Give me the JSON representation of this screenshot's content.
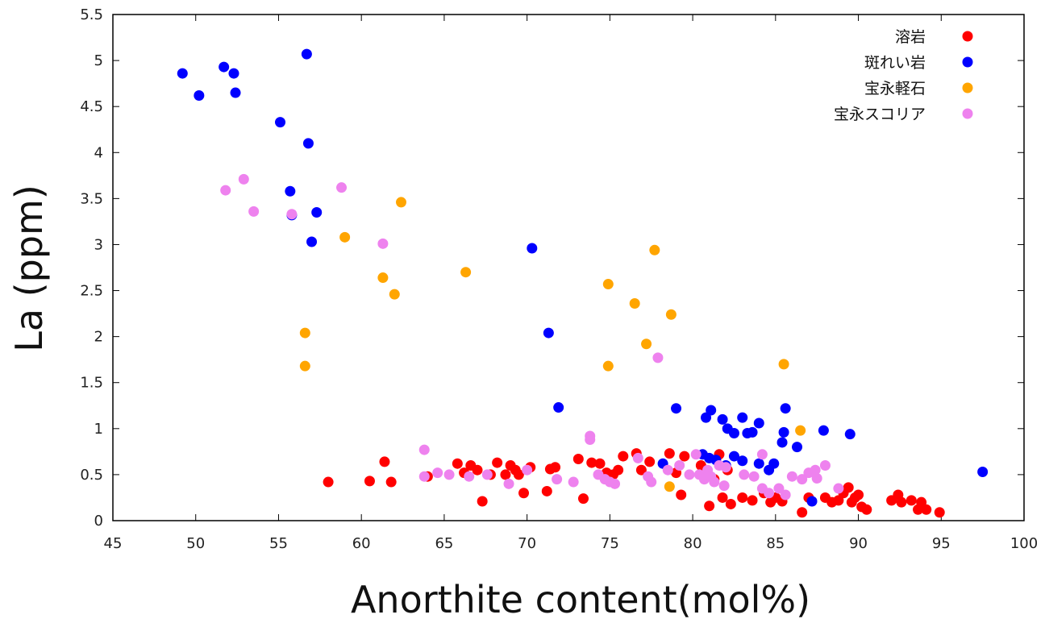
{
  "chart_data": {
    "type": "scatter",
    "title": "",
    "xlabel": "Anorthite content(mol%)",
    "ylabel": "La (ppm)",
    "xlim": [
      45,
      100
    ],
    "ylim": [
      0,
      5.5
    ],
    "xticks": [
      "45",
      "50",
      "55",
      "60",
      "65",
      "70",
      "75",
      "80",
      "85",
      "90",
      "95",
      "100"
    ],
    "yticks": [
      "0",
      "0.5",
      "1",
      "1.5",
      "2",
      "2.5",
      "3",
      "3.5",
      "4",
      "4.5",
      "5",
      "5.5"
    ],
    "grid": false,
    "legend_position": "top-right",
    "series": [
      {
        "name": "溶岩",
        "color": "#ff0000",
        "points": [
          [
            58,
            0.42
          ],
          [
            60.5,
            0.43
          ],
          [
            61.4,
            0.64
          ],
          [
            61.8,
            0.42
          ],
          [
            64,
            0.48
          ],
          [
            65.8,
            0.62
          ],
          [
            66.2,
            0.52
          ],
          [
            66.6,
            0.6
          ],
          [
            67,
            0.55
          ],
          [
            67.3,
            0.21
          ],
          [
            67.8,
            0.5
          ],
          [
            68.2,
            0.63
          ],
          [
            68.7,
            0.5
          ],
          [
            69,
            0.6
          ],
          [
            69.3,
            0.55
          ],
          [
            69.5,
            0.5
          ],
          [
            69.8,
            0.3
          ],
          [
            70.2,
            0.58
          ],
          [
            71.2,
            0.32
          ],
          [
            71.4,
            0.56
          ],
          [
            71.7,
            0.58
          ],
          [
            73.1,
            0.67
          ],
          [
            73.4,
            0.24
          ],
          [
            73.9,
            0.63
          ],
          [
            74.4,
            0.62
          ],
          [
            74.8,
            0.52
          ],
          [
            75.2,
            0.5
          ],
          [
            75.5,
            0.55
          ],
          [
            75.8,
            0.7
          ],
          [
            76.6,
            0.73
          ],
          [
            76.9,
            0.55
          ],
          [
            77.4,
            0.64
          ],
          [
            78.6,
            0.73
          ],
          [
            79,
            0.52
          ],
          [
            79.3,
            0.28
          ],
          [
            79.5,
            0.7
          ],
          [
            80.5,
            0.6
          ],
          [
            81,
            0.16
          ],
          [
            81.3,
            0.45
          ],
          [
            81.6,
            0.72
          ],
          [
            81.8,
            0.25
          ],
          [
            82.1,
            0.55
          ],
          [
            82.3,
            0.18
          ],
          [
            83,
            0.25
          ],
          [
            83.6,
            0.22
          ],
          [
            84.3,
            0.3
          ],
          [
            84.7,
            0.2
          ],
          [
            85,
            0.25
          ],
          [
            85.4,
            0.21
          ],
          [
            86.6,
            0.09
          ],
          [
            87,
            0.25
          ],
          [
            88,
            0.25
          ],
          [
            88.4,
            0.2
          ],
          [
            88.8,
            0.22
          ],
          [
            89.1,
            0.3
          ],
          [
            89.4,
            0.36
          ],
          [
            89.6,
            0.2
          ],
          [
            89.8,
            0.25
          ],
          [
            90,
            0.28
          ],
          [
            90.2,
            0.15
          ],
          [
            90.5,
            0.12
          ],
          [
            92,
            0.22
          ],
          [
            92.4,
            0.28
          ],
          [
            92.6,
            0.2
          ],
          [
            93.2,
            0.22
          ],
          [
            93.6,
            0.12
          ],
          [
            93.8,
            0.2
          ],
          [
            94.1,
            0.12
          ],
          [
            94.9,
            0.09
          ]
        ]
      },
      {
        "name": "斑れい岩",
        "color": "#0000ff",
        "points": [
          [
            49.2,
            4.86
          ],
          [
            50.2,
            4.62
          ],
          [
            51.7,
            4.93
          ],
          [
            52.3,
            4.86
          ],
          [
            52.4,
            4.65
          ],
          [
            55.1,
            4.33
          ],
          [
            55.7,
            3.58
          ],
          [
            55.8,
            3.32
          ],
          [
            56.7,
            5.07
          ],
          [
            56.8,
            4.1
          ],
          [
            57,
            3.03
          ],
          [
            57.3,
            3.35
          ],
          [
            70.3,
            2.96
          ],
          [
            71.3,
            2.04
          ],
          [
            71.9,
            1.23
          ],
          [
            79,
            1.22
          ],
          [
            80.8,
            1.12
          ],
          [
            81.1,
            1.2
          ],
          [
            81.8,
            1.1
          ],
          [
            82.1,
            1.0
          ],
          [
            82.5,
            0.95
          ],
          [
            83,
            1.12
          ],
          [
            83.3,
            0.95
          ],
          [
            83.6,
            0.96
          ],
          [
            84,
            1.06
          ],
          [
            85.6,
            1.22
          ],
          [
            85.5,
            0.96
          ],
          [
            85.4,
            0.85
          ],
          [
            86.3,
            0.8
          ],
          [
            87.9,
            0.98
          ],
          [
            89.5,
            0.94
          ],
          [
            78.2,
            0.62
          ],
          [
            80.6,
            0.72
          ],
          [
            81,
            0.68
          ],
          [
            81.4,
            0.66
          ],
          [
            82,
            0.6
          ],
          [
            82.5,
            0.7
          ],
          [
            83,
            0.65
          ],
          [
            84,
            0.62
          ],
          [
            84.6,
            0.55
          ],
          [
            84.9,
            0.62
          ],
          [
            87.2,
            0.21
          ],
          [
            97.5,
            0.53
          ]
        ]
      },
      {
        "name": "宝永軽石",
        "color": "#ffa500",
        "points": [
          [
            56.6,
            2.04
          ],
          [
            56.6,
            1.68
          ],
          [
            59,
            3.08
          ],
          [
            61.3,
            2.64
          ],
          [
            62,
            2.46
          ],
          [
            62.4,
            3.46
          ],
          [
            66.3,
            2.7
          ],
          [
            74.9,
            2.57
          ],
          [
            74.9,
            1.68
          ],
          [
            76.5,
            2.36
          ],
          [
            77.2,
            1.92
          ],
          [
            77.7,
            2.94
          ],
          [
            78.7,
            2.24
          ],
          [
            85.5,
            1.7
          ],
          [
            86.5,
            0.98
          ],
          [
            78.6,
            0.37
          ]
        ]
      },
      {
        "name": "宝永スコリア",
        "color": "#ee82ee",
        "points": [
          [
            51.8,
            3.59
          ],
          [
            52.9,
            3.71
          ],
          [
            53.5,
            3.36
          ],
          [
            55.8,
            3.33
          ],
          [
            58.8,
            3.62
          ],
          [
            61.3,
            3.01
          ],
          [
            63.8,
            0.77
          ],
          [
            63.8,
            0.48
          ],
          [
            64.6,
            0.52
          ],
          [
            65.3,
            0.5
          ],
          [
            66.5,
            0.48
          ],
          [
            67.6,
            0.5
          ],
          [
            68.9,
            0.4
          ],
          [
            70,
            0.55
          ],
          [
            71.8,
            0.45
          ],
          [
            72.8,
            0.42
          ],
          [
            73.8,
            0.92
          ],
          [
            73.8,
            0.88
          ],
          [
            74.3,
            0.5
          ],
          [
            74.7,
            0.45
          ],
          [
            75,
            0.42
          ],
          [
            75.3,
            0.4
          ],
          [
            76.7,
            0.68
          ],
          [
            77.3,
            0.48
          ],
          [
            77.5,
            0.42
          ],
          [
            77.9,
            1.77
          ],
          [
            78.5,
            0.55
          ],
          [
            79.2,
            0.6
          ],
          [
            79.8,
            0.5
          ],
          [
            80.2,
            0.72
          ],
          [
            80.4,
            0.5
          ],
          [
            80.7,
            0.45
          ],
          [
            80.9,
            0.55
          ],
          [
            81.1,
            0.48
          ],
          [
            81.3,
            0.42
          ],
          [
            81.6,
            0.6
          ],
          [
            81.9,
            0.38
          ],
          [
            82,
            0.58
          ],
          [
            83.1,
            0.5
          ],
          [
            83.7,
            0.48
          ],
          [
            84.2,
            0.72
          ],
          [
            84.2,
            0.35
          ],
          [
            84.6,
            0.3
          ],
          [
            85.2,
            0.35
          ],
          [
            85.6,
            0.28
          ],
          [
            86,
            0.48
          ],
          [
            86.6,
            0.45
          ],
          [
            87,
            0.52
          ],
          [
            87.4,
            0.55
          ],
          [
            87.5,
            0.46
          ],
          [
            88,
            0.6
          ],
          [
            88.8,
            0.35
          ]
        ]
      }
    ]
  }
}
